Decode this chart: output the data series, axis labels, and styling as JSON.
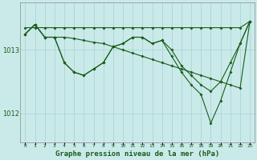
{
  "title": "Graphe pression niveau de la mer (hPa)",
  "background_color": "#caeaea",
  "grid_color": "#add4d4",
  "line_color": "#1a5c1a",
  "x": [
    0,
    1,
    2,
    3,
    4,
    5,
    6,
    7,
    8,
    9,
    10,
    11,
    12,
    13,
    14,
    15,
    16,
    17,
    18,
    19,
    20,
    21,
    22,
    23
  ],
  "line_flat": [
    1013.35,
    1013.35,
    1013.35,
    1013.35,
    1013.35,
    1013.35,
    1013.35,
    1013.35,
    1013.35,
    1013.35,
    1013.35,
    1013.35,
    1013.35,
    1013.35,
    1013.35,
    1013.35,
    1013.35,
    1013.35,
    1013.35,
    1013.35,
    1013.35,
    1013.35,
    1013.35,
    1013.45
  ],
  "line_diag": [
    1013.25,
    1013.4,
    1013.2,
    1013.2,
    1013.2,
    1013.18,
    1013.15,
    1013.12,
    1013.1,
    1013.05,
    1013.0,
    1012.95,
    1012.9,
    1012.85,
    1012.8,
    1012.75,
    1012.7,
    1012.65,
    1012.6,
    1012.55,
    1012.5,
    1012.45,
    1012.4,
    1013.45
  ],
  "line_zigzag": [
    1013.25,
    1013.4,
    1013.2,
    1013.2,
    1012.8,
    1012.65,
    1012.6,
    1012.7,
    1012.8,
    1013.05,
    1013.1,
    1013.2,
    1013.2,
    1013.1,
    1013.15,
    1013.0,
    1012.75,
    1012.6,
    1012.45,
    1012.35,
    1012.5,
    1012.8,
    1013.1,
    1013.45
  ],
  "line_deep": [
    1013.25,
    1013.4,
    1013.2,
    1013.2,
    1012.8,
    1012.65,
    1012.6,
    1012.7,
    1012.8,
    1013.05,
    1013.1,
    1013.2,
    1013.2,
    1013.1,
    1013.15,
    1012.9,
    1012.65,
    1012.45,
    1012.3,
    1011.85,
    1012.2,
    1012.65,
    1013.1,
    1013.45
  ],
  "ylim": [
    1011.55,
    1013.75
  ],
  "yticks": [
    1012.0,
    1013.0
  ]
}
